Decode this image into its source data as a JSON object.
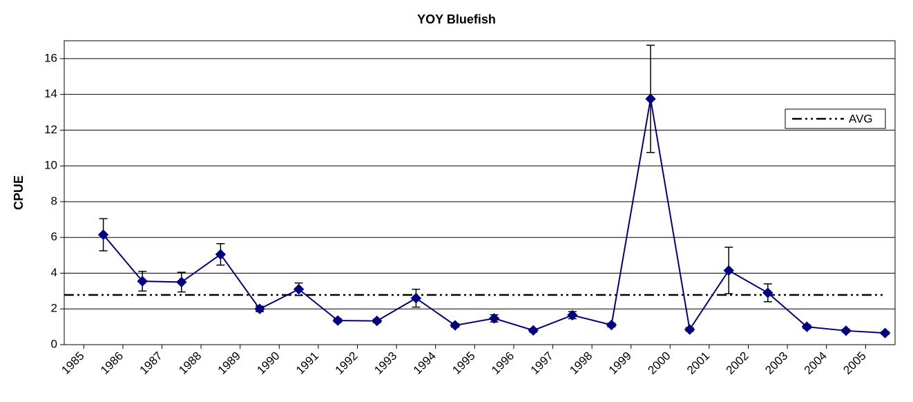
{
  "chart_data": {
    "type": "line",
    "title": "YOY Bluefish",
    "y_label": "CPUE",
    "categories": [
      "1985",
      "1986",
      "1987",
      "1988",
      "1989",
      "1990",
      "1991",
      "1992",
      "1993",
      "1994",
      "1995",
      "1996",
      "1997",
      "1998",
      "1999",
      "2000",
      "2001",
      "2002",
      "2003",
      "2004",
      "2005"
    ],
    "series": [
      {
        "color": "#000080",
        "values": [
          6.15,
          3.55,
          3.5,
          5.05,
          2.0,
          3.1,
          1.35,
          1.33,
          2.6,
          1.08,
          1.47,
          0.8,
          1.65,
          1.1,
          13.75,
          0.85,
          4.15,
          2.9,
          1.0,
          0.78,
          0.65
        ],
        "errors": [
          0.9,
          0.55,
          0.55,
          0.6,
          0.15,
          0.35,
          0.1,
          0.1,
          0.5,
          0.1,
          0.2,
          0.1,
          0.2,
          0.1,
          3.0,
          0.1,
          1.3,
          0.5,
          0.1,
          0.08,
          0.08
        ]
      }
    ],
    "reference_line": {
      "name": "AVG",
      "value": 2.78,
      "color": "#000000"
    },
    "ylim": [
      0,
      17
    ],
    "yticks": [
      0,
      2,
      4,
      6,
      8,
      10,
      12,
      14,
      16
    ],
    "grid": true,
    "legend": "upper right"
  }
}
